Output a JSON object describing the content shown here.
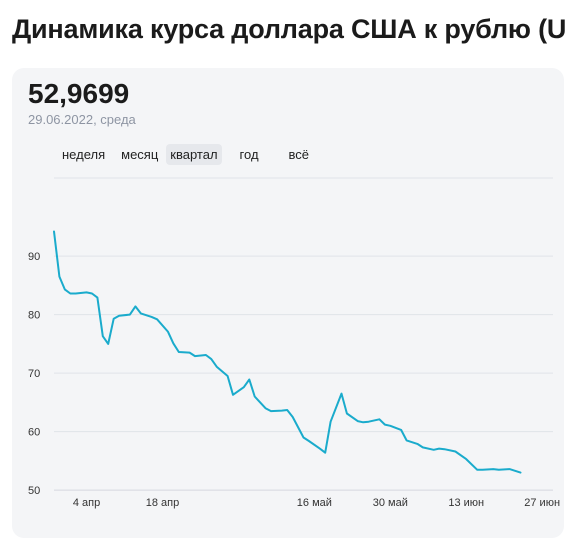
{
  "header": {
    "title": "Динамика курса доллара США к рублю (U"
  },
  "summary": {
    "value": "52,9699",
    "date": "29.06.2022, среда"
  },
  "tabs": [
    {
      "label": "неделя",
      "active": false
    },
    {
      "label": "месяц",
      "active": false
    },
    {
      "label": "квартал",
      "active": true
    },
    {
      "label": "год",
      "active": false
    },
    {
      "label": "всё",
      "active": false
    }
  ],
  "colors": {
    "line": "#1aabcc",
    "card": "#f4f5f7"
  },
  "chart_data": {
    "type": "line",
    "title": "",
    "xlabel": "",
    "ylabel": "",
    "ylim": [
      49,
      103
    ],
    "yticks": [
      50,
      60,
      70,
      80,
      90
    ],
    "xlim": [
      "2022-03-29",
      "2022-06-29"
    ],
    "xticks": [
      {
        "date": "2022-04-04",
        "label": "4 апр"
      },
      {
        "date": "2022-04-18",
        "label": "18 апр"
      },
      {
        "date": "2022-05-16",
        "label": "16 май"
      },
      {
        "date": "2022-05-30",
        "label": "30 май"
      },
      {
        "date": "2022-06-13",
        "label": "13 июн"
      },
      {
        "date": "2022-06-27",
        "label": "27 июн"
      }
    ],
    "grid": true,
    "series": [
      {
        "points": [
          [
            "2022-03-29",
            94.2
          ],
          [
            "2022-03-30",
            86.5
          ],
          [
            "2022-03-31",
            84.3
          ],
          [
            "2022-04-01",
            83.6
          ],
          [
            "2022-04-02",
            83.6
          ],
          [
            "2022-04-04",
            83.8
          ],
          [
            "2022-04-05",
            83.6
          ],
          [
            "2022-04-06",
            82.9
          ],
          [
            "2022-04-07",
            76.3
          ],
          [
            "2022-04-08",
            75.0
          ],
          [
            "2022-04-09",
            79.3
          ],
          [
            "2022-04-10",
            79.8
          ],
          [
            "2022-04-12",
            80.0
          ],
          [
            "2022-04-13",
            81.4
          ],
          [
            "2022-04-14",
            80.2
          ],
          [
            "2022-04-16",
            79.6
          ],
          [
            "2022-04-17",
            79.2
          ],
          [
            "2022-04-19",
            77.1
          ],
          [
            "2022-04-20",
            75.1
          ],
          [
            "2022-04-21",
            73.6
          ],
          [
            "2022-04-23",
            73.5
          ],
          [
            "2022-04-24",
            72.9
          ],
          [
            "2022-04-26",
            73.1
          ],
          [
            "2022-04-27",
            72.4
          ],
          [
            "2022-04-28",
            71.1
          ],
          [
            "2022-04-30",
            69.5
          ],
          [
            "2022-05-01",
            66.3
          ],
          [
            "2022-05-03",
            67.6
          ],
          [
            "2022-05-04",
            68.9
          ],
          [
            "2022-05-05",
            66.0
          ],
          [
            "2022-05-07",
            64.0
          ],
          [
            "2022-05-08",
            63.5
          ],
          [
            "2022-05-10",
            63.6
          ],
          [
            "2022-05-11",
            63.7
          ],
          [
            "2022-05-12",
            62.5
          ],
          [
            "2022-05-14",
            59.0
          ],
          [
            "2022-05-15",
            58.4
          ],
          [
            "2022-05-17",
            57.1
          ],
          [
            "2022-05-18",
            56.4
          ],
          [
            "2022-05-19",
            61.7
          ],
          [
            "2022-05-21",
            66.5
          ],
          [
            "2022-05-22",
            63.1
          ],
          [
            "2022-05-24",
            61.8
          ],
          [
            "2022-05-25",
            61.6
          ],
          [
            "2022-05-26",
            61.7
          ],
          [
            "2022-05-28",
            62.1
          ],
          [
            "2022-05-29",
            61.2
          ],
          [
            "2022-05-30",
            61.0
          ],
          [
            "2022-06-01",
            60.3
          ],
          [
            "2022-06-02",
            58.5
          ],
          [
            "2022-06-04",
            57.9
          ],
          [
            "2022-06-05",
            57.3
          ],
          [
            "2022-06-07",
            56.9
          ],
          [
            "2022-06-08",
            57.1
          ],
          [
            "2022-06-09",
            57.0
          ],
          [
            "2022-06-11",
            56.6
          ],
          [
            "2022-06-13",
            55.3
          ],
          [
            "2022-06-15",
            53.5
          ],
          [
            "2022-06-16",
            53.5
          ],
          [
            "2022-06-18",
            53.6
          ],
          [
            "2022-06-19",
            53.5
          ],
          [
            "2022-06-21",
            53.6
          ],
          [
            "2022-06-23",
            53.0
          ]
        ]
      }
    ]
  }
}
